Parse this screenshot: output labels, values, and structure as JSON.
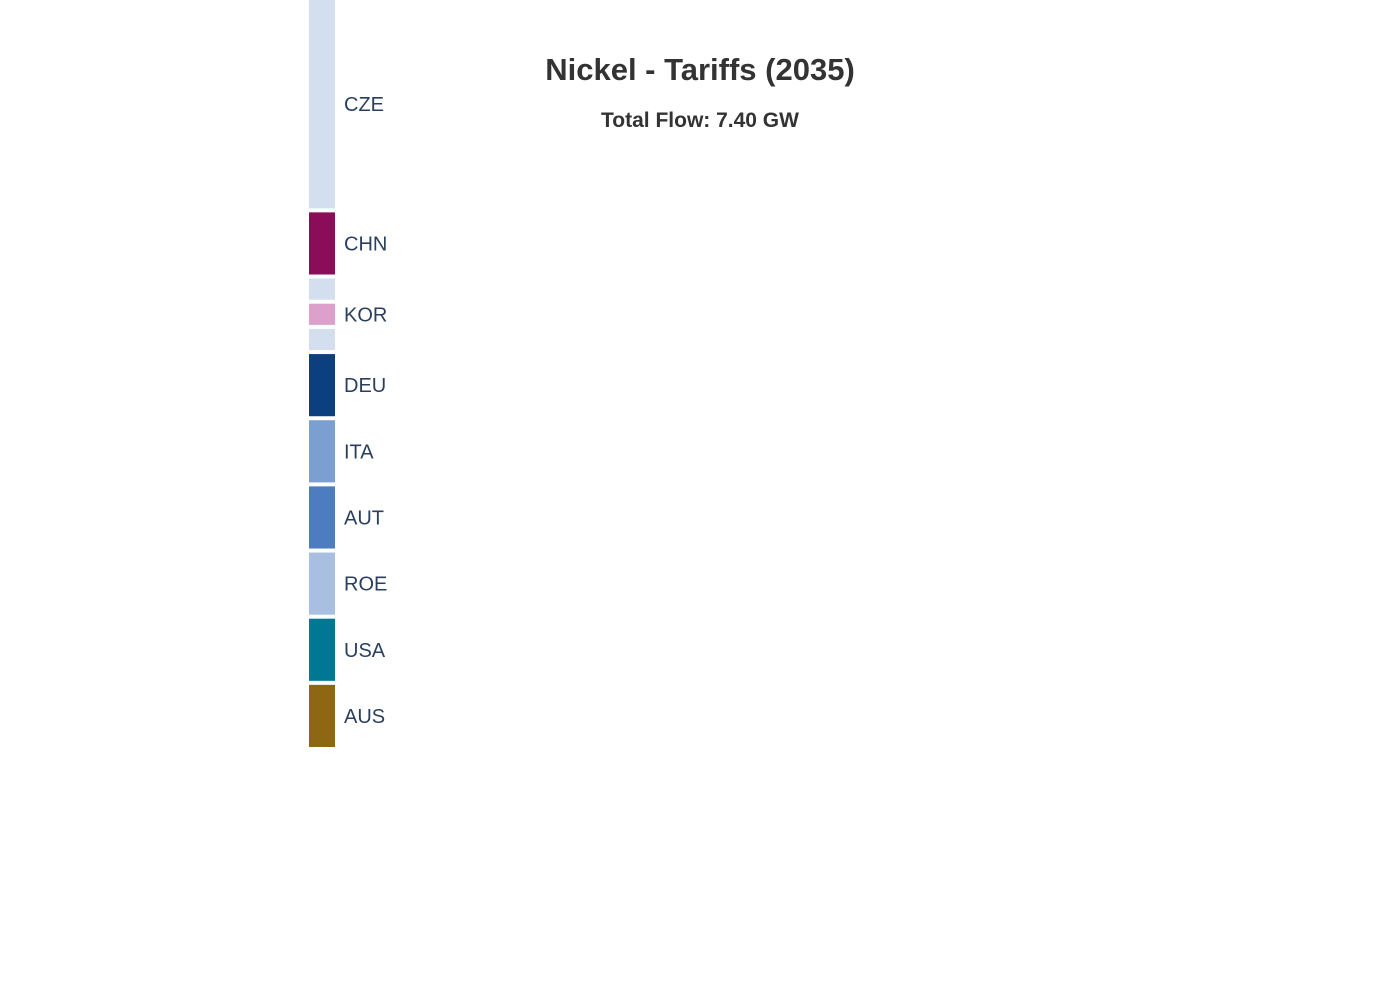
{
  "chart_data": {
    "type": "sankey",
    "title": "Nickel - Tariffs (2035)",
    "subtitle": "Total Flow: 7.40 GW",
    "nodes": [
      {
        "label": "CZE",
        "color": "#d3dfef",
        "value": 2.95
      },
      {
        "label": "CHN",
        "color": "#8b0d5a",
        "value": 0.88
      },
      {
        "label": "",
        "color": "#d3dfef",
        "value": 0.3
      },
      {
        "label": "KOR",
        "color": "#dca0cc",
        "value": 0.3
      },
      {
        "label": "",
        "color": "#d3dfef",
        "value": 0.3
      },
      {
        "label": "DEU",
        "color": "#0b3f7f",
        "value": 0.88
      },
      {
        "label": "ITA",
        "color": "#7c9fd1",
        "value": 0.88
      },
      {
        "label": "AUT",
        "color": "#4e7cc0",
        "value": 0.88
      },
      {
        "label": "ROE",
        "color": "#a8bfe2",
        "value": 0.88
      },
      {
        "label": "USA",
        "color": "#007893",
        "value": 0.88
      },
      {
        "label": "AUS",
        "color": "#8d6712",
        "value": 0.88
      }
    ]
  }
}
